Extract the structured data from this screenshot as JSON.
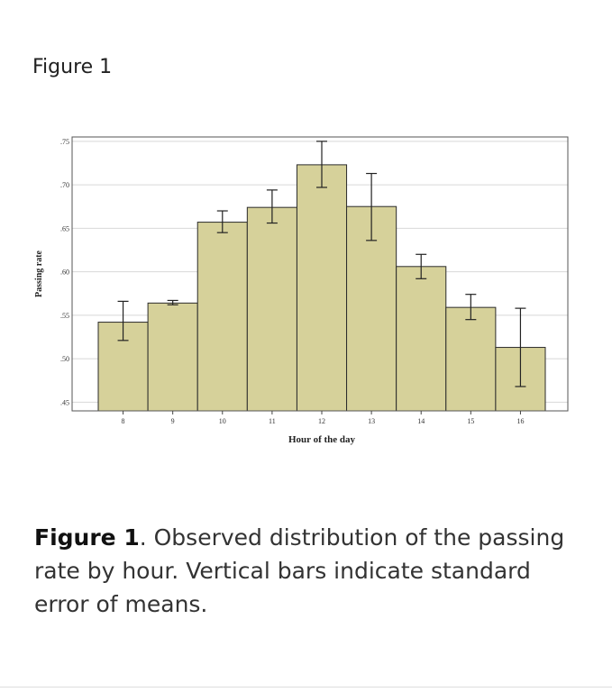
{
  "figure_heading": "Figure 1",
  "caption": {
    "label": "Figure 1",
    "text": ". Observed distribution of the passing rate by hour. Vertical bars indicate standard error of means."
  },
  "colors": {
    "bar_fill": "#d6d19a",
    "bar_stroke": "#2b2b2b",
    "grid": "#d8d8d8",
    "frame": "#555555"
  },
  "chart_data": {
    "type": "bar",
    "xlabel": "Hour of the day",
    "ylabel": "Passing rate",
    "categories": [
      "8",
      "9",
      "10",
      "11",
      "12",
      "13",
      "14",
      "15",
      "16"
    ],
    "values": [
      0.542,
      0.564,
      0.657,
      0.674,
      0.723,
      0.675,
      0.606,
      0.559,
      0.513
    ],
    "error_low": [
      0.521,
      0.562,
      0.645,
      0.656,
      0.697,
      0.636,
      0.592,
      0.545,
      0.468
    ],
    "error_high": [
      0.566,
      0.567,
      0.67,
      0.694,
      0.75,
      0.713,
      0.62,
      0.574,
      0.558
    ],
    "yticks": [
      ".45",
      ".50",
      ".55",
      ".60",
      ".65",
      ".70",
      ".75"
    ],
    "ytick_values": [
      0.45,
      0.5,
      0.55,
      0.6,
      0.65,
      0.7,
      0.75
    ],
    "ylim": [
      0.44,
      0.755
    ],
    "grid": true
  }
}
